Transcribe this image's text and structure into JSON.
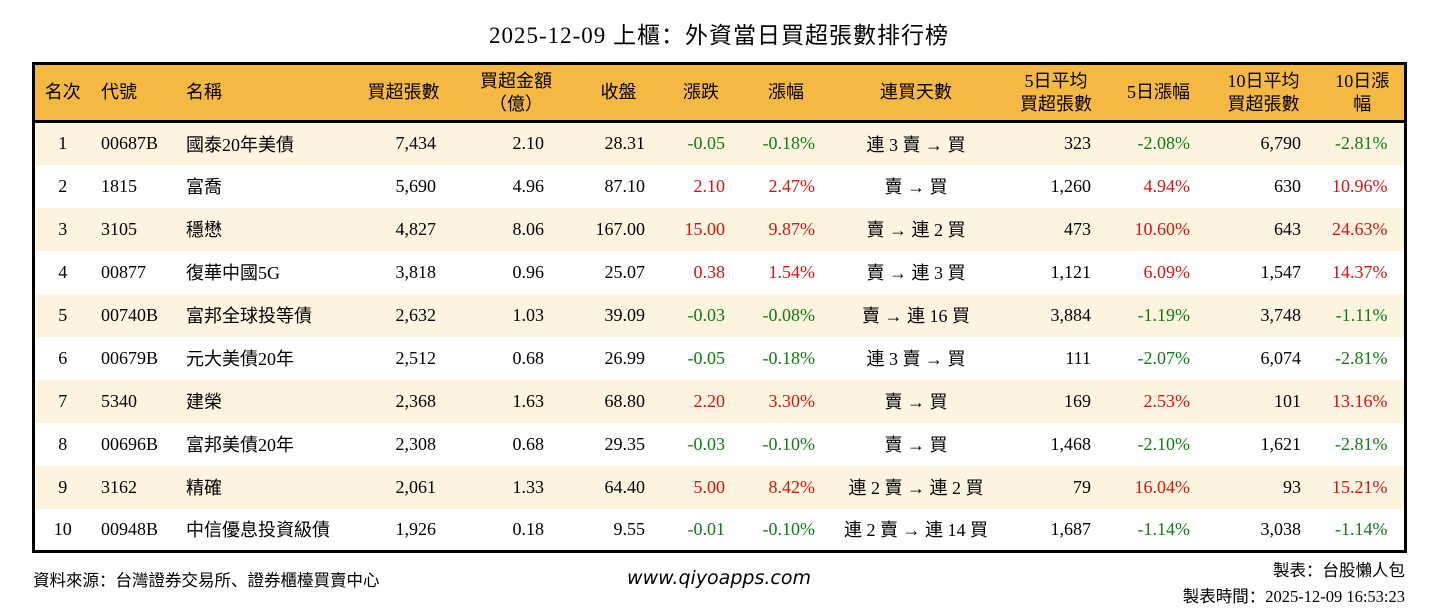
{
  "title": "2025-12-09 上櫃：外資當日買超張數排行榜",
  "colors": {
    "up": "#dd1111",
    "down": "#0e7c14",
    "header_bg": "#f5b843",
    "row_alt": "#fcf4de",
    "border": "#000000"
  },
  "chart_data": {
    "type": "table",
    "columns": [
      {
        "key": "rank",
        "label": "名次",
        "align": "center",
        "colored": false
      },
      {
        "key": "code",
        "label": "代號",
        "align": "left",
        "colored": false
      },
      {
        "key": "name",
        "label": "名稱",
        "align": "left",
        "colored": false
      },
      {
        "key": "volume",
        "label": "買超張數",
        "align": "right",
        "colored": false
      },
      {
        "key": "amount",
        "label": "買超金額\n（億）",
        "align": "right",
        "colored": false
      },
      {
        "key": "close",
        "label": "收盤",
        "align": "right",
        "colored": false
      },
      {
        "key": "change",
        "label": "漲跌",
        "align": "right",
        "colored": true
      },
      {
        "key": "change_pct",
        "label": "漲幅",
        "align": "right",
        "colored": true
      },
      {
        "key": "streak",
        "label": "連買天數",
        "align": "center",
        "colored": false
      },
      {
        "key": "avg5",
        "label": "5日平均\n買超張數",
        "align": "right",
        "colored": false
      },
      {
        "key": "pct5",
        "label": "5日漲幅",
        "align": "right",
        "colored": true
      },
      {
        "key": "avg10",
        "label": "10日平均\n買超張數",
        "align": "right",
        "colored": false
      },
      {
        "key": "pct10",
        "label": "10日漲幅",
        "align": "right",
        "colored": true
      }
    ],
    "rows": [
      {
        "rank": "1",
        "code": "00687B",
        "name": "國泰20年美債",
        "volume": "7,434",
        "amount": "2.10",
        "close": "28.31",
        "change": "-0.05",
        "change_pct": "-0.18%",
        "streak": "連 3 賣 → 買",
        "avg5": "323",
        "pct5": "-2.08%",
        "avg10": "6,790",
        "pct10": "-2.81%"
      },
      {
        "rank": "2",
        "code": "1815",
        "name": "富喬",
        "volume": "5,690",
        "amount": "4.96",
        "close": "87.10",
        "change": "2.10",
        "change_pct": "2.47%",
        "streak": "賣 → 買",
        "avg5": "1,260",
        "pct5": "4.94%",
        "avg10": "630",
        "pct10": "10.96%"
      },
      {
        "rank": "3",
        "code": "3105",
        "name": "穩懋",
        "volume": "4,827",
        "amount": "8.06",
        "close": "167.00",
        "change": "15.00",
        "change_pct": "9.87%",
        "streak": "賣 → 連 2 買",
        "avg5": "473",
        "pct5": "10.60%",
        "avg10": "643",
        "pct10": "24.63%"
      },
      {
        "rank": "4",
        "code": "00877",
        "name": "復華中國5G",
        "volume": "3,818",
        "amount": "0.96",
        "close": "25.07",
        "change": "0.38",
        "change_pct": "1.54%",
        "streak": "賣 → 連 3 買",
        "avg5": "1,121",
        "pct5": "6.09%",
        "avg10": "1,547",
        "pct10": "14.37%"
      },
      {
        "rank": "5",
        "code": "00740B",
        "name": "富邦全球投等債",
        "volume": "2,632",
        "amount": "1.03",
        "close": "39.09",
        "change": "-0.03",
        "change_pct": "-0.08%",
        "streak": "賣 → 連 16 買",
        "avg5": "3,884",
        "pct5": "-1.19%",
        "avg10": "3,748",
        "pct10": "-1.11%"
      },
      {
        "rank": "6",
        "code": "00679B",
        "name": "元大美債20年",
        "volume": "2,512",
        "amount": "0.68",
        "close": "26.99",
        "change": "-0.05",
        "change_pct": "-0.18%",
        "streak": "連 3 賣 → 買",
        "avg5": "111",
        "pct5": "-2.07%",
        "avg10": "6,074",
        "pct10": "-2.81%"
      },
      {
        "rank": "7",
        "code": "5340",
        "name": "建榮",
        "volume": "2,368",
        "amount": "1.63",
        "close": "68.80",
        "change": "2.20",
        "change_pct": "3.30%",
        "streak": "賣 → 買",
        "avg5": "169",
        "pct5": "2.53%",
        "avg10": "101",
        "pct10": "13.16%"
      },
      {
        "rank": "8",
        "code": "00696B",
        "name": "富邦美債20年",
        "volume": "2,308",
        "amount": "0.68",
        "close": "29.35",
        "change": "-0.03",
        "change_pct": "-0.10%",
        "streak": "賣 → 買",
        "avg5": "1,468",
        "pct5": "-2.10%",
        "avg10": "1,621",
        "pct10": "-2.81%"
      },
      {
        "rank": "9",
        "code": "3162",
        "name": "精確",
        "volume": "2,061",
        "amount": "1.33",
        "close": "64.40",
        "change": "5.00",
        "change_pct": "8.42%",
        "streak": "連 2 賣 → 連 2 買",
        "avg5": "79",
        "pct5": "16.04%",
        "avg10": "93",
        "pct10": "15.21%"
      },
      {
        "rank": "10",
        "code": "00948B",
        "name": "中信優息投資級債",
        "volume": "1,926",
        "amount": "0.18",
        "close": "9.55",
        "change": "-0.01",
        "change_pct": "-0.10%",
        "streak": "連 2 賣 → 連 14 買",
        "avg5": "1,687",
        "pct5": "-1.14%",
        "avg10": "3,038",
        "pct10": "-1.14%"
      }
    ]
  },
  "footer": {
    "source": "資料來源：台灣證券交易所、證券櫃檯買賣中心",
    "website": "www.qiyoapps.com",
    "maker": "製表：台股懶人包",
    "time": "製表時間：2025-12-09 16:53:23"
  }
}
